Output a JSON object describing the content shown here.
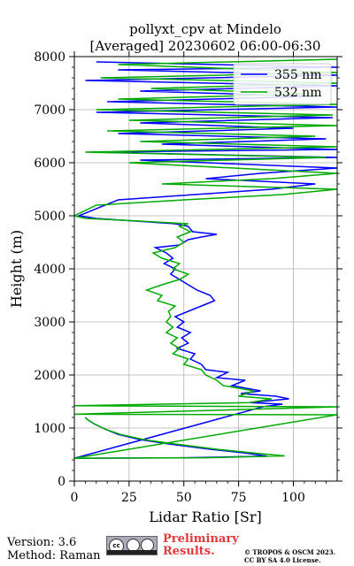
{
  "chart_data": {
    "type": "line",
    "title": "pollyxt_cpv at Mindelo",
    "subtitle": "[Averaged] 20230602 06:00-06:30",
    "xlabel": "Lidar Ratio [Sr]",
    "ylabel": "Height (m)",
    "xlim": [
      0,
      120
    ],
    "ylim": [
      0,
      8000
    ],
    "xticks": [
      "0",
      "25",
      "50",
      "75",
      "100"
    ],
    "yticks": [
      "0",
      "1000",
      "2000",
      "3000",
      "4000",
      "5000",
      "6000",
      "7000",
      "8000"
    ],
    "grid": true,
    "legend_position": "top-right",
    "series": [
      {
        "name": "355 nm",
        "color": "#0000ff",
        "points": [
          [
            5,
            1200
          ],
          [
            6,
            1160
          ],
          [
            9,
            1080
          ],
          [
            14,
            980
          ],
          [
            20,
            880
          ],
          [
            30,
            780
          ],
          [
            45,
            690
          ],
          [
            62,
            600
          ],
          [
            78,
            530
          ],
          [
            88,
            470
          ],
          [
            50,
            440
          ],
          [
            0,
            430
          ],
          [
            86,
            1400
          ],
          [
            95,
            1450
          ],
          [
            80,
            1480
          ],
          [
            98,
            1550
          ],
          [
            92,
            1600
          ],
          [
            76,
            1650
          ],
          [
            85,
            1700
          ],
          [
            72,
            1800
          ],
          [
            78,
            1900
          ],
          [
            65,
            1950
          ],
          [
            70,
            2050
          ],
          [
            60,
            2100
          ],
          [
            58,
            2200
          ],
          [
            53,
            2300
          ],
          [
            55,
            2400
          ],
          [
            47,
            2500
          ],
          [
            52,
            2600
          ],
          [
            49,
            2700
          ],
          [
            53,
            2800
          ],
          [
            47,
            2900
          ],
          [
            50,
            3000
          ],
          [
            46,
            3100
          ],
          [
            52,
            3200
          ],
          [
            58,
            3300
          ],
          [
            64,
            3400
          ],
          [
            62,
            3500
          ],
          [
            56,
            3600
          ],
          [
            52,
            3700
          ],
          [
            48,
            3800
          ],
          [
            44,
            3900
          ],
          [
            46,
            4000
          ],
          [
            41,
            4100
          ],
          [
            45,
            4200
          ],
          [
            42,
            4300
          ],
          [
            37,
            4400
          ],
          [
            48,
            4450
          ],
          [
            52,
            4550
          ],
          [
            58,
            4600
          ],
          [
            65,
            4650
          ],
          [
            54,
            4700
          ],
          [
            52,
            4800
          ],
          [
            46,
            4850
          ],
          [
            28,
            4900
          ],
          [
            10,
            4950
          ],
          [
            2,
            5000
          ],
          [
            20,
            5300
          ],
          [
            55,
            5400
          ],
          [
            90,
            5500
          ],
          [
            110,
            5600
          ],
          [
            60,
            5700
          ],
          [
            85,
            5800
          ],
          [
            120,
            5900
          ],
          [
            30,
            6050
          ],
          [
            120,
            6100
          ],
          [
            10,
            6200
          ],
          [
            120,
            6250
          ],
          [
            40,
            6350
          ],
          [
            115,
            6450
          ],
          [
            20,
            6550
          ],
          [
            100,
            6650
          ],
          [
            30,
            6750
          ],
          [
            118,
            6850
          ],
          [
            10,
            6950
          ],
          [
            120,
            7050
          ],
          [
            15,
            7150
          ],
          [
            110,
            7250
          ],
          [
            30,
            7350
          ],
          [
            120,
            7450
          ],
          [
            5,
            7550
          ],
          [
            120,
            7650
          ],
          [
            20,
            7750
          ],
          [
            120,
            7800
          ],
          [
            10,
            7900
          ]
        ]
      },
      {
        "name": "532 nm",
        "color": "#00aa00",
        "points": [
          [
            5,
            1200
          ],
          [
            6,
            1160
          ],
          [
            9,
            1080
          ],
          [
            14,
            980
          ],
          [
            21,
            880
          ],
          [
            32,
            780
          ],
          [
            48,
            690
          ],
          [
            65,
            600
          ],
          [
            82,
            530
          ],
          [
            96,
            475
          ],
          [
            60,
            440
          ],
          [
            0,
            430
          ],
          [
            120,
            1250
          ],
          [
            0,
            1260
          ],
          [
            120,
            1400
          ],
          [
            0,
            1420
          ],
          [
            80,
            1480
          ],
          [
            90,
            1550
          ],
          [
            75,
            1600
          ],
          [
            82,
            1700
          ],
          [
            68,
            1800
          ],
          [
            65,
            1900
          ],
          [
            60,
            2000
          ],
          [
            58,
            2100
          ],
          [
            50,
            2200
          ],
          [
            52,
            2300
          ],
          [
            45,
            2400
          ],
          [
            48,
            2500
          ],
          [
            44,
            2600
          ],
          [
            47,
            2700
          ],
          [
            42,
            2800
          ],
          [
            45,
            2900
          ],
          [
            42,
            3000
          ],
          [
            44,
            3100
          ],
          [
            43,
            3200
          ],
          [
            46,
            3300
          ],
          [
            38,
            3400
          ],
          [
            40,
            3500
          ],
          [
            33,
            3600
          ],
          [
            40,
            3700
          ],
          [
            48,
            3800
          ],
          [
            52,
            3900
          ],
          [
            45,
            4000
          ],
          [
            48,
            4100
          ],
          [
            40,
            4200
          ],
          [
            36,
            4300
          ],
          [
            46,
            4400
          ],
          [
            50,
            4500
          ],
          [
            47,
            4600
          ],
          [
            53,
            4700
          ],
          [
            48,
            4800
          ],
          [
            52,
            4850
          ],
          [
            30,
            4900
          ],
          [
            5,
            4950
          ],
          [
            0,
            5000
          ],
          [
            10,
            5200
          ],
          [
            50,
            5300
          ],
          [
            95,
            5400
          ],
          [
            120,
            5500
          ],
          [
            40,
            5600
          ],
          [
            90,
            5700
          ],
          [
            120,
            5800
          ],
          [
            25,
            6000
          ],
          [
            115,
            6100
          ],
          [
            5,
            6200
          ],
          [
            120,
            6300
          ],
          [
            30,
            6400
          ],
          [
            110,
            6500
          ],
          [
            15,
            6600
          ],
          [
            120,
            6700
          ],
          [
            25,
            6800
          ],
          [
            118,
            6900
          ],
          [
            10,
            7000
          ],
          [
            120,
            7100
          ],
          [
            20,
            7200
          ],
          [
            110,
            7300
          ],
          [
            35,
            7400
          ],
          [
            120,
            7500
          ],
          [
            12,
            7600
          ],
          [
            120,
            7700
          ],
          [
            20,
            7850
          ],
          [
            120,
            7950
          ]
        ]
      }
    ]
  },
  "footer": {
    "version": "Version: 3.6",
    "method": "Method: Raman",
    "preliminary": "Preliminary Results.",
    "copyright_line1": "© TROPOS & OSCM 2023.",
    "copyright_line2": "CC BY SA 4.0 License.",
    "license_badge_text": "cc"
  }
}
